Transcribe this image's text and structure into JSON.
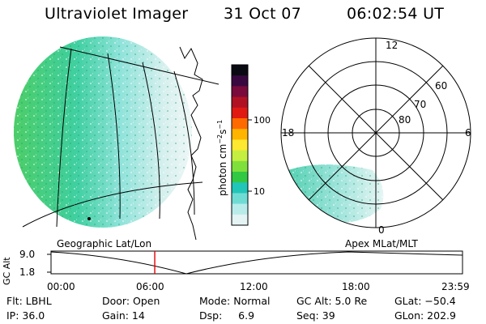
{
  "header": {
    "instrument": "Ultraviolet Imager",
    "date": "31 Oct 07",
    "time": "06:02:54 UT"
  },
  "colorbar": {
    "label": "photon cm",
    "exp_a": "−2",
    "unit_s": "s",
    "exp_b": "−1",
    "ticks": [
      "100",
      "10"
    ],
    "colors": [
      "#0a0a12",
      "#3a0840",
      "#7a0a3c",
      "#b01224",
      "#e01a12",
      "#ff6a00",
      "#ffb400",
      "#ffe830",
      "#c4ef40",
      "#7fe03c",
      "#31c943",
      "#21c6b8",
      "#6fdcd4",
      "#b8ecea",
      "#e4f3f3"
    ]
  },
  "left_panel": {
    "label": "Geographic Lat/Lon"
  },
  "polar": {
    "mlt_labels": [
      "12",
      "18",
      "6",
      "0"
    ],
    "lat_labels": [
      "60",
      "70",
      "80"
    ],
    "label": "Apex MLat/MLT"
  },
  "altitude": {
    "axis_label": "GC Alt",
    "y_ticks": [
      "9.0",
      "1.8"
    ],
    "x_ticks": [
      "00:00",
      "06:00",
      "12:00",
      "18:00",
      "23:59"
    ],
    "current_marker_hours": 6.05
  },
  "info": {
    "filter": "Flt: LBHL",
    "ip": "IP: 36.0",
    "door": "Door: Open",
    "gain": "Gain: 14",
    "mode": "Mode: Normal",
    "dsp": "Dsp:     6.9",
    "gc_alt": "GC Alt: 5.0 Re",
    "seq": "Seq: 39",
    "glat": "GLat: −50.4",
    "glon": "GLon: 202.9"
  }
}
